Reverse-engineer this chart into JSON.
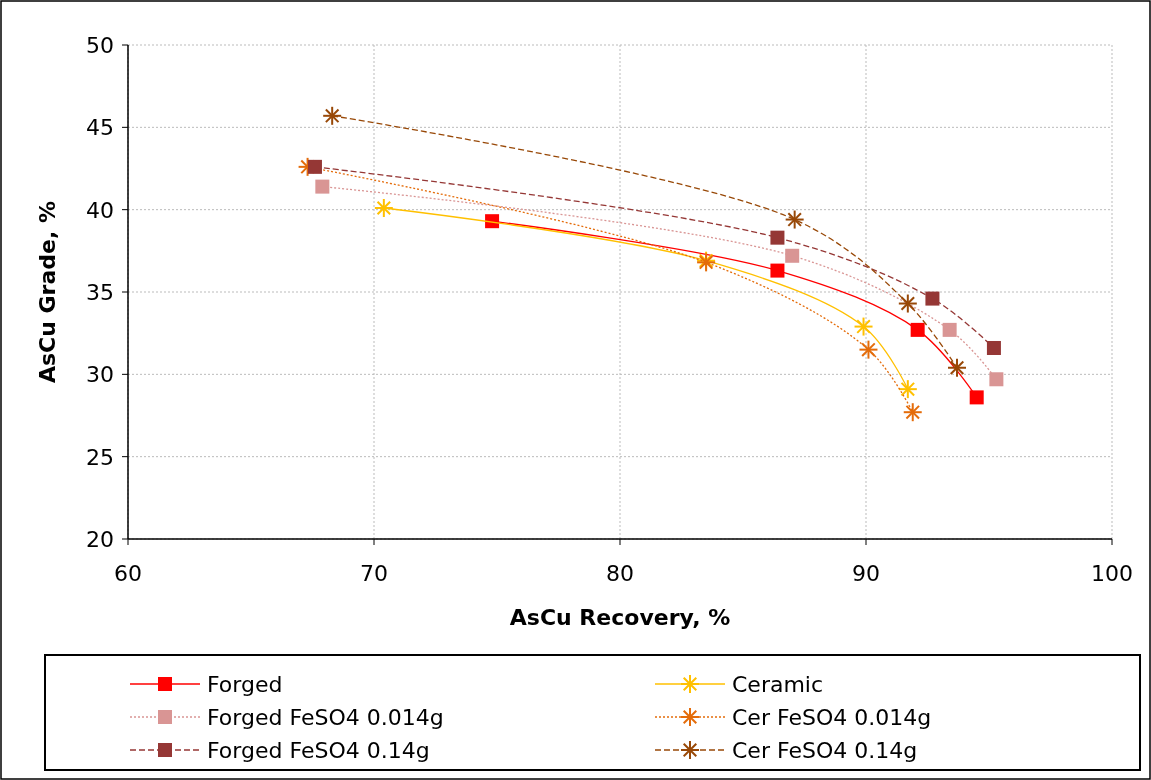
{
  "chart_data": {
    "type": "line",
    "xlabel": "AsCu Recovery, %",
    "ylabel": "AsCu Grade, %",
    "xlim": [
      60,
      100
    ],
    "xticks": [
      60,
      70,
      80,
      90,
      100
    ],
    "ylim": [
      20,
      50
    ],
    "yticks": [
      20,
      25,
      30,
      35,
      40,
      45,
      50
    ],
    "grid": true,
    "legend": "bottom",
    "series": [
      {
        "name": "Forged",
        "color": "#ff0000",
        "marker": "square",
        "line_style": "solid",
        "x": [
          74.8,
          86.4,
          92.1,
          94.5
        ],
        "values": [
          39.3,
          36.3,
          32.7,
          28.6
        ]
      },
      {
        "name": "Ceramic",
        "color": "#ffc000",
        "marker": "cross",
        "line_style": "solid",
        "x": [
          70.4,
          83.5,
          89.9,
          91.7
        ],
        "values": [
          40.1,
          36.9,
          32.9,
          29.1
        ]
      },
      {
        "name": "Forged FeSO4 0.014g",
        "color": "#d99594",
        "marker": "square",
        "line_style": "dotted",
        "x": [
          67.9,
          87.0,
          93.4,
          95.3
        ],
        "values": [
          41.4,
          37.2,
          32.7,
          29.7
        ]
      },
      {
        "name": "Cer FeSO4 0.014g",
        "color": "#e46c0a",
        "marker": "cross",
        "line_style": "dotted",
        "x": [
          67.3,
          83.5,
          90.1,
          91.9
        ],
        "values": [
          42.6,
          36.8,
          31.5,
          27.7
        ]
      },
      {
        "name": "Forged FeSO4 0.14g",
        "color": "#953735",
        "marker": "square",
        "line_style": "dashed",
        "x": [
          67.6,
          86.4,
          92.7,
          95.2
        ],
        "values": [
          42.6,
          38.3,
          34.6,
          31.6
        ]
      },
      {
        "name": "Cer FeSO4 0.14g",
        "color": "#984807",
        "marker": "cross",
        "line_style": "dashed",
        "x": [
          68.3,
          87.1,
          91.7,
          93.7
        ],
        "values": [
          45.7,
          39.4,
          34.3,
          30.4
        ]
      }
    ]
  }
}
